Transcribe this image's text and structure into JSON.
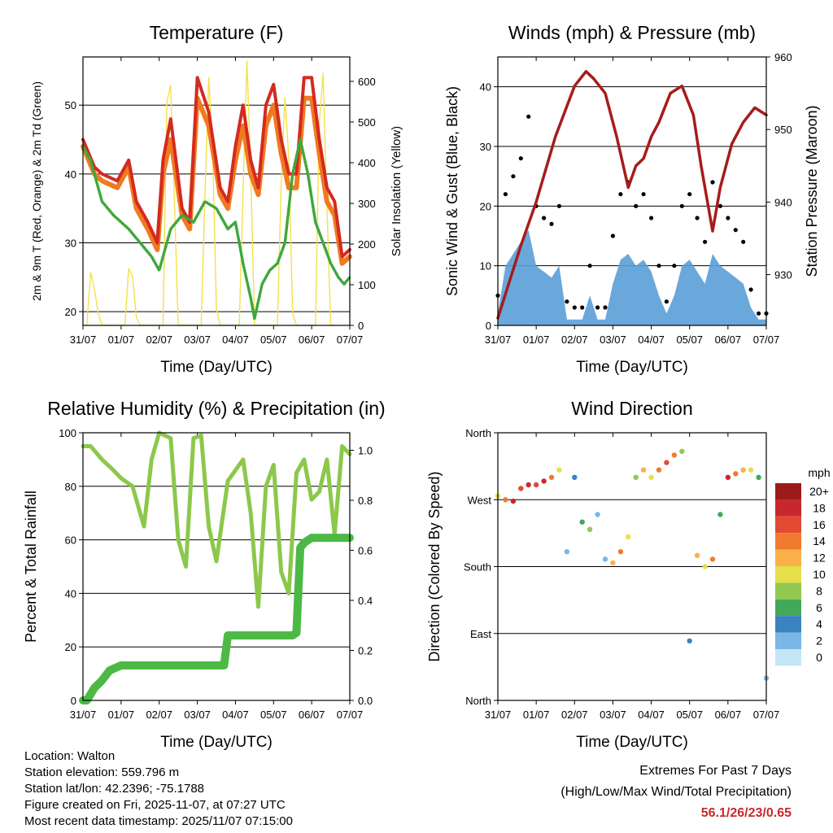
{
  "footer": {
    "location": "Location: Walton",
    "elevation": "Station elevation: 559.796 m",
    "latlon": "Station lat/lon: 42.2396; -75.1788",
    "created": "Figure created on Fri, 2025-11-07, at 07:27 UTC",
    "recent": "Most recent data timestamp: 2025/11/07 07:15:00",
    "extremes_title": "Extremes For Past 7 Days",
    "extremes_sub": "(High/Low/Max Wind/Total Precipitation)",
    "extremes_values": "56.1/26/23/0.65"
  },
  "colors": {
    "temp2m": "#d42a20",
    "temp9m": "#f07a20",
    "dewpoint": "#3ea83a",
    "solar": "#f5e04a",
    "gust": "#000000",
    "wind": "#5a9fd8",
    "pressure": "#a61c1c",
    "rh": "#8cc84b",
    "precip": "#4cb944"
  },
  "chart_data": [
    {
      "id": "temperature",
      "type": "line",
      "title": "Temperature (F)",
      "xlabel": "Time (Day/UTC)",
      "ylabel": "2m & 9m T (Red, Orange) & 2m Td (Green)",
      "y2label": "Solar Insolation (Yellow)",
      "xticks": [
        "31/07",
        "01/07",
        "02/07",
        "03/07",
        "04/07",
        "05/07",
        "06/07",
        "07/07"
      ],
      "xlim": [
        0,
        7
      ],
      "ylim": [
        18,
        57
      ],
      "yticks": [
        20,
        30,
        40,
        50
      ],
      "y2lim": [
        0,
        660
      ],
      "y2ticks": [
        0,
        100,
        200,
        300,
        400,
        500,
        600
      ],
      "series": [
        {
          "name": "2m T",
          "axis": "left",
          "x": [
            0,
            0.3,
            0.5,
            0.9,
            1.2,
            1.4,
            1.7,
            1.95,
            2.1,
            2.3,
            2.6,
            2.8,
            3.0,
            3.3,
            3.6,
            3.8,
            4.0,
            4.2,
            4.4,
            4.6,
            4.8,
            5.0,
            5.2,
            5.4,
            5.6,
            5.8,
            6.0,
            6.2,
            6.4,
            6.6,
            6.8,
            7.0
          ],
          "values": [
            45,
            41,
            40,
            39,
            42,
            36,
            33,
            30,
            42,
            48,
            35,
            33,
            54,
            49,
            38,
            36,
            44,
            50,
            42,
            38,
            50,
            53,
            45,
            40,
            40,
            54,
            54,
            45,
            38,
            36,
            28,
            29
          ]
        },
        {
          "name": "9m T",
          "axis": "left",
          "x": [
            0,
            0.3,
            0.5,
            0.9,
            1.2,
            1.4,
            1.7,
            1.95,
            2.1,
            2.3,
            2.6,
            2.8,
            3.0,
            3.3,
            3.6,
            3.8,
            4.0,
            4.2,
            4.4,
            4.6,
            4.8,
            5.0,
            5.2,
            5.4,
            5.6,
            5.8,
            6.0,
            6.2,
            6.4,
            6.6,
            6.8,
            7.0
          ],
          "values": [
            44,
            40,
            39,
            38,
            41,
            35,
            32,
            29,
            40,
            45,
            34,
            32,
            51,
            47,
            37,
            35,
            42,
            47,
            40,
            37,
            47,
            50,
            43,
            38,
            38,
            51,
            51,
            43,
            36,
            34,
            27,
            28
          ]
        },
        {
          "name": "2m Td",
          "axis": "left",
          "x": [
            0,
            0.2,
            0.5,
            0.8,
            1.2,
            1.5,
            1.8,
            2.0,
            2.3,
            2.6,
            2.9,
            3.2,
            3.5,
            3.8,
            4.0,
            4.2,
            4.4,
            4.5,
            4.7,
            4.9,
            5.1,
            5.3,
            5.5,
            5.7,
            5.9,
            6.1,
            6.3,
            6.5,
            6.7,
            6.85,
            7.0
          ],
          "values": [
            44,
            42,
            36,
            34,
            32,
            30,
            28,
            26,
            32,
            34,
            33,
            36,
            35,
            32,
            33,
            27,
            22,
            19,
            24,
            26,
            27,
            30,
            40,
            45,
            40,
            33,
            30,
            27,
            25,
            24,
            25
          ]
        },
        {
          "name": "Solar",
          "axis": "right",
          "x": [
            0.1,
            0.2,
            0.3,
            0.4,
            0.5,
            0.6,
            1.1,
            1.2,
            1.3,
            1.4,
            1.5,
            1.6,
            2.1,
            2.2,
            2.3,
            2.4,
            2.5,
            3.1,
            3.2,
            3.3,
            3.4,
            3.5,
            3.6,
            4.1,
            4.2,
            4.3,
            4.4,
            4.5,
            4.6,
            5.1,
            5.2,
            5.3,
            5.4,
            5.5,
            5.6,
            6.1,
            6.2,
            6.3,
            6.4,
            6.5,
            6.6
          ],
          "values": [
            0,
            130,
            90,
            30,
            0,
            0,
            0,
            140,
            120,
            20,
            0,
            0,
            0,
            550,
            590,
            300,
            0,
            0,
            320,
            610,
            440,
            40,
            0,
            0,
            330,
            650,
            380,
            0,
            0,
            0,
            350,
            560,
            410,
            30,
            0,
            0,
            500,
            620,
            290,
            0,
            0
          ]
        }
      ]
    },
    {
      "id": "winds",
      "type": "scatter",
      "title": "Winds (mph) & Pressure (mb)",
      "xlabel": "Time (Day/UTC)",
      "ylabel": "Sonic Wind & Gust (Blue, Black)",
      "y2label": "Station Pressure (Maroon)",
      "xticks": [
        "31/07",
        "01/07",
        "02/07",
        "03/07",
        "04/07",
        "05/07",
        "06/07",
        "07/07"
      ],
      "xlim": [
        0,
        7
      ],
      "ylim": [
        0,
        45
      ],
      "yticks": [
        0,
        10,
        20,
        30,
        40
      ],
      "y2lim": [
        923,
        960
      ],
      "y2ticks": [
        930,
        940,
        950,
        960
      ],
      "series": [
        {
          "name": "Gust",
          "x": [
            0,
            0.2,
            0.4,
            0.6,
            0.8,
            1.0,
            1.2,
            1.4,
            1.6,
            1.8,
            2.0,
            2.2,
            2.4,
            2.6,
            2.8,
            3.0,
            3.2,
            3.4,
            3.6,
            3.8,
            4.0,
            4.2,
            4.4,
            4.6,
            4.8,
            5.0,
            5.2,
            5.4,
            5.6,
            5.8,
            6.0,
            6.2,
            6.4,
            6.6,
            6.8,
            7.0
          ],
          "values": [
            5,
            22,
            25,
            28,
            35,
            20,
            18,
            17,
            20,
            4,
            3,
            3,
            10,
            3,
            3,
            15,
            22,
            24,
            20,
            22,
            18,
            10,
            4,
            10,
            20,
            22,
            18,
            14,
            24,
            20,
            18,
            16,
            14,
            6,
            2,
            2
          ]
        },
        {
          "name": "Wind",
          "x": [
            0,
            0.2,
            0.4,
            0.6,
            0.8,
            1.0,
            1.2,
            1.4,
            1.6,
            1.8,
            2.0,
            2.2,
            2.4,
            2.6,
            2.8,
            3.0,
            3.2,
            3.4,
            3.6,
            3.8,
            4.0,
            4.2,
            4.4,
            4.6,
            4.8,
            5.0,
            5.2,
            5.4,
            5.6,
            5.8,
            6.0,
            6.2,
            6.4,
            6.6,
            6.8,
            7.0
          ],
          "values": [
            2,
            10,
            12,
            14,
            16,
            10,
            9,
            8,
            10,
            1,
            1,
            1,
            5,
            1,
            1,
            7,
            11,
            12,
            10,
            11,
            9,
            5,
            2,
            5,
            10,
            11,
            9,
            7,
            12,
            10,
            9,
            8,
            7,
            3,
            1,
            1
          ]
        },
        {
          "name": "Pressure",
          "x": [
            0,
            0.3,
            0.6,
            1.0,
            1.5,
            2.0,
            2.3,
            2.5,
            2.8,
            3.1,
            3.4,
            3.6,
            3.8,
            4.0,
            4.2,
            4.5,
            4.8,
            5.1,
            5.3,
            5.6,
            5.8,
            6.1,
            6.4,
            6.7,
            7.0
          ],
          "values": [
            924,
            929,
            934,
            940,
            949,
            956,
            958,
            957,
            955,
            949,
            942,
            945,
            946,
            949,
            951,
            955,
            956,
            952,
            945,
            936,
            942,
            948,
            951,
            953,
            952
          ]
        }
      ]
    },
    {
      "id": "humidity",
      "type": "line",
      "title": "Relative Humidity (%) & Precipitation (in)",
      "xlabel": "Time (Day/UTC)",
      "ylabel": "Percent & Total Rainfall",
      "xticks": [
        "31/07",
        "01/07",
        "02/07",
        "03/07",
        "04/07",
        "05/07",
        "06/07",
        "07/07"
      ],
      "xlim": [
        0,
        7
      ],
      "ylim": [
        0,
        100
      ],
      "yticks": [
        0,
        20,
        40,
        60,
        80,
        100
      ],
      "y2lim": [
        0,
        1.07
      ],
      "y2ticks": [
        "0.0",
        "0.2",
        "0.4",
        "0.6",
        "0.8",
        "1.0"
      ],
      "series": [
        {
          "name": "RH",
          "axis": "left",
          "x": [
            0,
            0.2,
            0.5,
            0.8,
            1.0,
            1.3,
            1.6,
            1.8,
            2.0,
            2.3,
            2.5,
            2.7,
            2.9,
            3.1,
            3.3,
            3.5,
            3.8,
            4.0,
            4.2,
            4.4,
            4.6,
            4.8,
            5.0,
            5.2,
            5.4,
            5.6,
            5.8,
            6.0,
            6.2,
            6.4,
            6.6,
            6.8,
            7.0
          ],
          "values": [
            95,
            95,
            90,
            86,
            83,
            80,
            65,
            90,
            100,
            98,
            60,
            50,
            98,
            99,
            65,
            52,
            82,
            86,
            90,
            70,
            35,
            80,
            88,
            48,
            40,
            85,
            90,
            75,
            78,
            90,
            62,
            95,
            92
          ]
        },
        {
          "name": "Precip",
          "axis": "right",
          "x": [
            0,
            0.1,
            0.3,
            0.5,
            0.7,
            1.0,
            1.3,
            1.6,
            2.0,
            2.5,
            3.0,
            3.5,
            3.7,
            3.8,
            4.0,
            4.5,
            5.0,
            5.5,
            5.6,
            5.7,
            5.8,
            6.0,
            6.5,
            7.0
          ],
          "values": [
            0,
            0,
            0.05,
            0.08,
            0.12,
            0.14,
            0.14,
            0.14,
            0.14,
            0.14,
            0.14,
            0.14,
            0.14,
            0.26,
            0.26,
            0.26,
            0.26,
            0.26,
            0.27,
            0.61,
            0.63,
            0.65,
            0.65,
            0.65
          ]
        }
      ]
    },
    {
      "id": "direction",
      "type": "scatter",
      "title": "Wind Direction",
      "xlabel": "Time (Day/UTC)",
      "ylabel": "Direction (Colored By Speed)",
      "xticks": [
        "31/07",
        "01/07",
        "02/07",
        "03/07",
        "04/07",
        "05/07",
        "06/07",
        "07/07"
      ],
      "xlim": [
        0,
        7
      ],
      "ylim": [
        0,
        360
      ],
      "yticks": [
        {
          "v": 0,
          "l": "North"
        },
        {
          "v": 90,
          "l": "East"
        },
        {
          "v": 180,
          "l": "South"
        },
        {
          "v": 270,
          "l": "West"
        },
        {
          "v": 360,
          "l": "North"
        }
      ],
      "colorbar": {
        "title": "mph",
        "labels": [
          "20+",
          "18",
          "16",
          "14",
          "12",
          "10",
          "8",
          "6",
          "4",
          "2",
          "0"
        ],
        "colors": [
          "#9b1b1b",
          "#c8282d",
          "#e24a32",
          "#f07a30",
          "#f9b04a",
          "#e6e04a",
          "#92c850",
          "#42a85a",
          "#3a82c0",
          "#7ab6e6",
          "#c4e6f6"
        ]
      },
      "series": [
        {
          "name": "Direction",
          "x": [
            0,
            0.2,
            0.4,
            0.6,
            0.8,
            1.0,
            1.2,
            1.4,
            1.6,
            1.8,
            2.0,
            2.2,
            2.4,
            2.6,
            2.8,
            3.0,
            3.2,
            3.4,
            3.6,
            3.8,
            4.0,
            4.2,
            4.4,
            4.6,
            4.8,
            5.0,
            5.2,
            5.4,
            5.6,
            5.8,
            6.0,
            6.2,
            6.4,
            6.6,
            6.8,
            7.0
          ],
          "values": [
            275,
            270,
            268,
            285,
            290,
            290,
            295,
            300,
            310,
            200,
            300,
            240,
            230,
            250,
            190,
            185,
            200,
            220,
            300,
            310,
            300,
            310,
            320,
            330,
            335,
            80,
            195,
            180,
            190,
            250,
            300,
            305,
            310,
            310,
            300,
            30
          ],
          "speeds": [
            10,
            14,
            18,
            16,
            18,
            16,
            18,
            14,
            10,
            2,
            4,
            6,
            8,
            2,
            2,
            12,
            14,
            10,
            8,
            12,
            10,
            14,
            16,
            14,
            8,
            4,
            12,
            10,
            14,
            6,
            18,
            14,
            12,
            10,
            6,
            2
          ]
        }
      ]
    }
  ]
}
